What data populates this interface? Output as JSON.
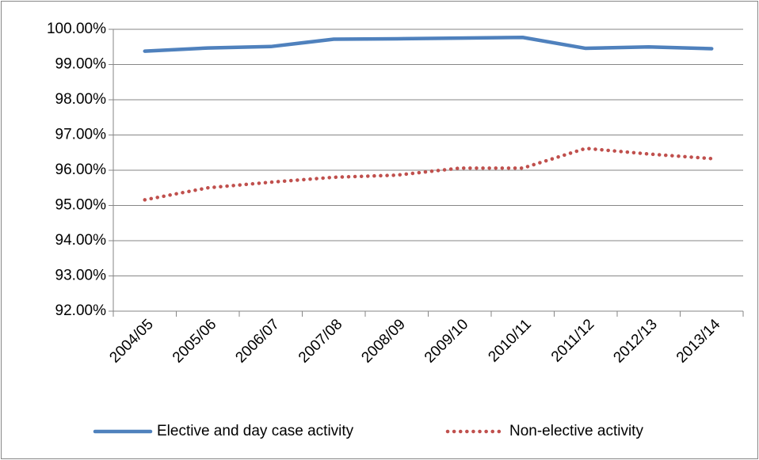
{
  "chart_data": {
    "type": "line",
    "categories": [
      "2004/05",
      "2005/06",
      "2006/07",
      "2007/08",
      "2008/09",
      "2009/10",
      "2010/11",
      "2011/12",
      "2012/13",
      "2013/14"
    ],
    "series": [
      {
        "name": "Elective and day case activity",
        "color": "#4f81bd",
        "style": "solid",
        "values": [
          99.38,
          99.47,
          99.51,
          99.72,
          99.73,
          99.75,
          99.77,
          99.46,
          99.5,
          99.45
        ]
      },
      {
        "name": "Non-elective activity",
        "color": "#c0504d",
        "style": "dotted",
        "values": [
          95.16,
          95.5,
          95.66,
          95.8,
          95.86,
          96.06,
          96.06,
          96.62,
          96.46,
          96.33
        ]
      }
    ],
    "ylim": [
      92,
      100
    ],
    "yticks": [
      {
        "value": 92,
        "label": "92.00%"
      },
      {
        "value": 93,
        "label": "93.00%"
      },
      {
        "value": 94,
        "label": "94.00%"
      },
      {
        "value": 95,
        "label": "95.00%"
      },
      {
        "value": 96,
        "label": "96.00%"
      },
      {
        "value": 97,
        "label": "97.00%"
      },
      {
        "value": 98,
        "label": "98.00%"
      },
      {
        "value": 99,
        "label": "99.00%"
      },
      {
        "value": 100,
        "label": "100.00%"
      }
    ],
    "grid": true,
    "legend": "bottom"
  }
}
